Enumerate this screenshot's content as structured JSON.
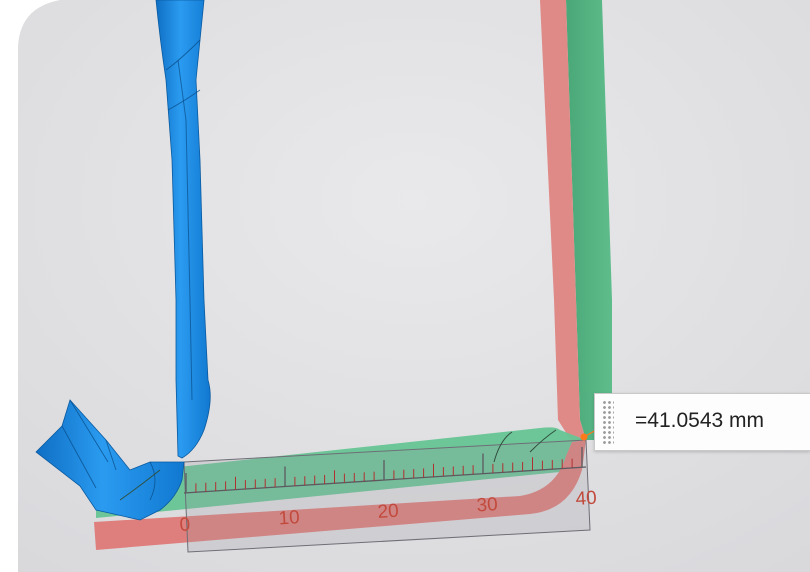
{
  "viewport": {
    "background_color": "#e4e4e6",
    "parts": [
      {
        "name": "blue-bracket-part",
        "color": "#1f8ee0"
      },
      {
        "name": "green-strip-part",
        "color": "#58b885"
      },
      {
        "name": "red-strip-part",
        "color": "#e08a88"
      }
    ]
  },
  "ruler": {
    "tick_labels": [
      "0",
      "10",
      "20",
      "30",
      "40"
    ],
    "tick_label_color": "#c24a3c",
    "minor_tick_count": 40,
    "end_marker_color": "#ff7a1a"
  },
  "measurement": {
    "value_text": "=41.0543 mm",
    "grip_icon": "drag-handle-icon"
  }
}
